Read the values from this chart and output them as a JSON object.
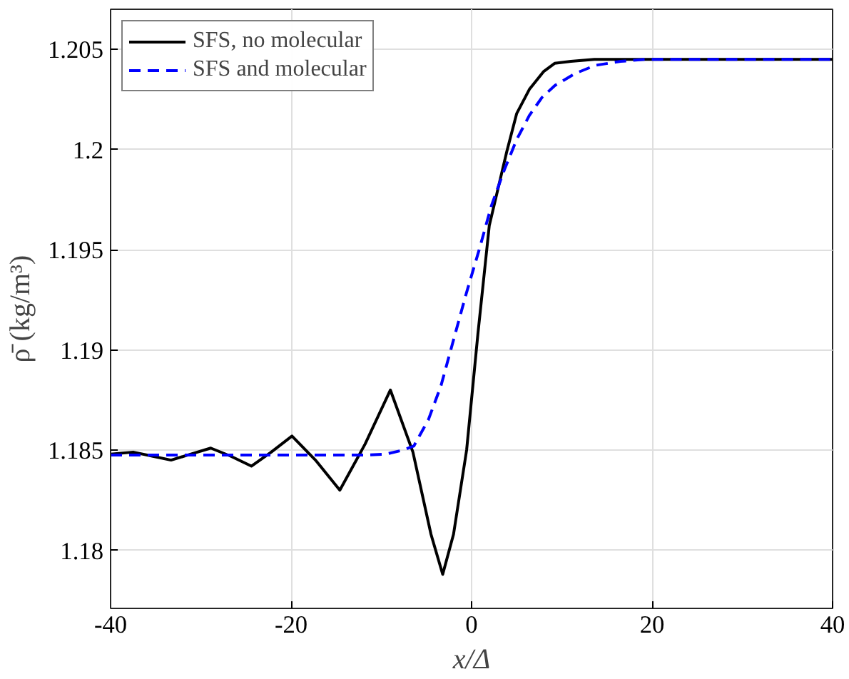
{
  "chart_data": {
    "type": "line",
    "xlabel": "x/Δ",
    "ylabel": "ρ̄ (kg/m³)",
    "xlim": [
      -40,
      40
    ],
    "ylim": [
      1.1771,
      1.207
    ],
    "xticks": [
      -40,
      -20,
      0,
      20,
      40
    ],
    "yticks": [
      1.18,
      1.185,
      1.19,
      1.195,
      1.2,
      1.205
    ],
    "grid": true,
    "legend": "top left",
    "series": [
      {
        "name": "SFS, no molecular",
        "color": "#000000",
        "line_style": "solid",
        "x": [
          -40,
          -37.5,
          -35.4,
          -33.3,
          -31.1,
          -28.9,
          -26.7,
          -24.4,
          -22.2,
          -19.9,
          -17.3,
          -14.6,
          -11.8,
          -9.0,
          -6.5,
          -4.5,
          -3.2,
          -2.0,
          -0.55,
          0.7,
          1.96,
          3.9,
          5.0,
          6.4,
          8.0,
          9.2,
          11.0,
          13.6,
          20,
          30,
          40
        ],
        "values": [
          1.1848,
          1.1849,
          1.1847,
          1.1845,
          1.1848,
          1.1851,
          1.1847,
          1.1842,
          1.1849,
          1.1857,
          1.1845,
          1.183,
          1.1853,
          1.188,
          1.1849,
          1.1808,
          1.1788,
          1.1808,
          1.185,
          1.1908,
          1.1962,
          1.1999,
          1.2018,
          1.203,
          1.2039,
          1.2043,
          1.2044,
          1.2045,
          1.2045,
          1.2045,
          1.2045
        ]
      },
      {
        "name": "SFS and molecular",
        "color": "#0000ff",
        "line_style": "dashed",
        "x": [
          -40,
          -30,
          -20,
          -12,
          -9.5,
          -7.6,
          -6.4,
          -4.8,
          -3.4,
          -2.0,
          -0.6,
          0.84,
          2.2,
          3.64,
          5.0,
          6.4,
          7.8,
          9.24,
          11.5,
          13.7,
          16.5,
          19.3,
          30,
          40
        ],
        "values": [
          1.18475,
          1.18475,
          1.18475,
          1.18475,
          1.1848,
          1.185,
          1.1852,
          1.1865,
          1.1882,
          1.1905,
          1.1928,
          1.195,
          1.1972,
          1.199,
          1.2005,
          1.2017,
          1.2026,
          1.2032,
          1.2038,
          1.2042,
          1.2044,
          1.2045,
          1.2045,
          1.2045
        ]
      }
    ]
  }
}
